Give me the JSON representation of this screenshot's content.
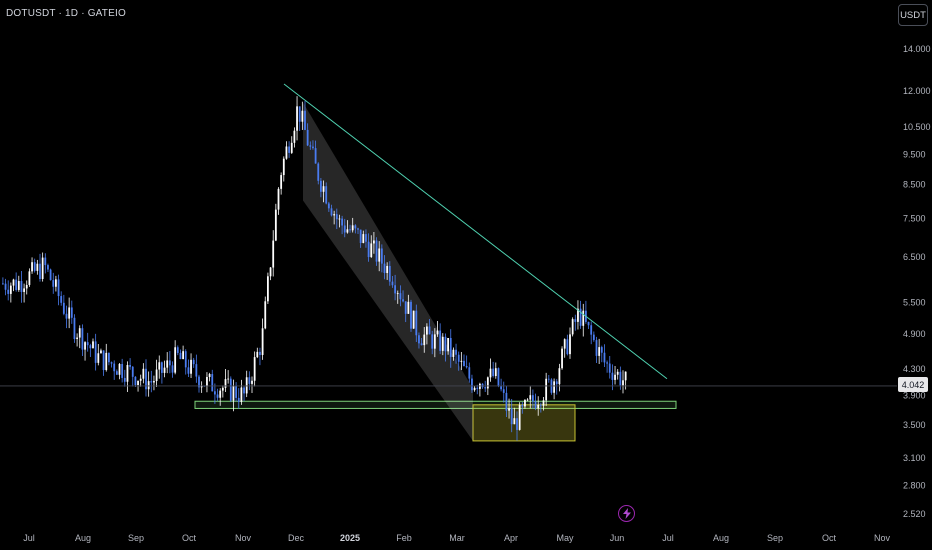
{
  "header": {
    "title": "DOTUSDT · 1D · GATEIO"
  },
  "currency_button": "USDT",
  "current_price_label": "4.042",
  "colors": {
    "background": "#000000",
    "candle": "#ffffff",
    "trendline": "#4fd1b0",
    "support_zone": "#7ed37a",
    "buy_zone": "#c9c332",
    "channel": "#d9d9d9",
    "event_icon": "#9c27b0"
  },
  "chart_data": {
    "type": "candlestick",
    "symbol": "DOTUSDT",
    "interval": "1D",
    "exchange": "GATEIO",
    "y_scale": "log",
    "y_ticks": [
      "14.000",
      "12.000",
      "10.500",
      "9.500",
      "8.500",
      "7.500",
      "6.500",
      "5.500",
      "4.900",
      "4.300",
      "3.900",
      "3.500",
      "3.100",
      "2.800",
      "2.520"
    ],
    "x_ticks": [
      "Jul",
      "Aug",
      "Sep",
      "Oct",
      "Nov",
      "Dec",
      "2025",
      "Feb",
      "Mar",
      "Apr",
      "May",
      "Jun",
      "Jul",
      "Aug",
      "Sep",
      "Oct",
      "Nov"
    ],
    "current_price": 4.042,
    "close_path": [
      [
        "Jul",
        5.9
      ],
      [
        "Jul",
        6.3
      ],
      [
        "Aug",
        5.1
      ],
      [
        "Aug",
        4.5
      ],
      [
        "Sep",
        4.3
      ],
      [
        "Sep",
        4.1
      ],
      [
        "Oct",
        4.5
      ],
      [
        "Oct",
        4.1
      ],
      [
        "Nov",
        4.0
      ],
      [
        "Nov",
        3.9
      ],
      [
        "Nov",
        4.8
      ],
      [
        "Dec",
        8.8
      ],
      [
        "Dec",
        11.3
      ],
      [
        "Dec",
        9.0
      ],
      [
        "2025",
        7.4
      ],
      [
        "2025",
        6.9
      ],
      [
        "Feb",
        6.1
      ],
      [
        "Feb",
        4.9
      ],
      [
        "Mar",
        4.7
      ],
      [
        "Mar",
        4.1
      ],
      [
        "Apr",
        4.2
      ],
      [
        "Apr",
        3.5
      ],
      [
        "Apr",
        3.8
      ],
      [
        "May",
        4.1
      ],
      [
        "May",
        5.3
      ],
      [
        "Jun",
        4.4
      ],
      [
        "Jun",
        4.04
      ]
    ],
    "annotations": {
      "descending_trendline": {
        "from": [
          "Dec",
          12.0
        ],
        "to": [
          "Jun",
          4.15
        ]
      },
      "descending_channel": {
        "from": [
          "Dec",
          11.5
        ],
        "to": [
          "Mar",
          4.0
        ]
      },
      "support_zone": {
        "x_from": "Oct",
        "x_to": "Jun",
        "price_low": 3.72,
        "price_high": 3.82
      },
      "buy_zone": {
        "x_from": "Mar",
        "x_to": "May",
        "price_low": 3.3,
        "price_high": 3.77
      }
    }
  }
}
